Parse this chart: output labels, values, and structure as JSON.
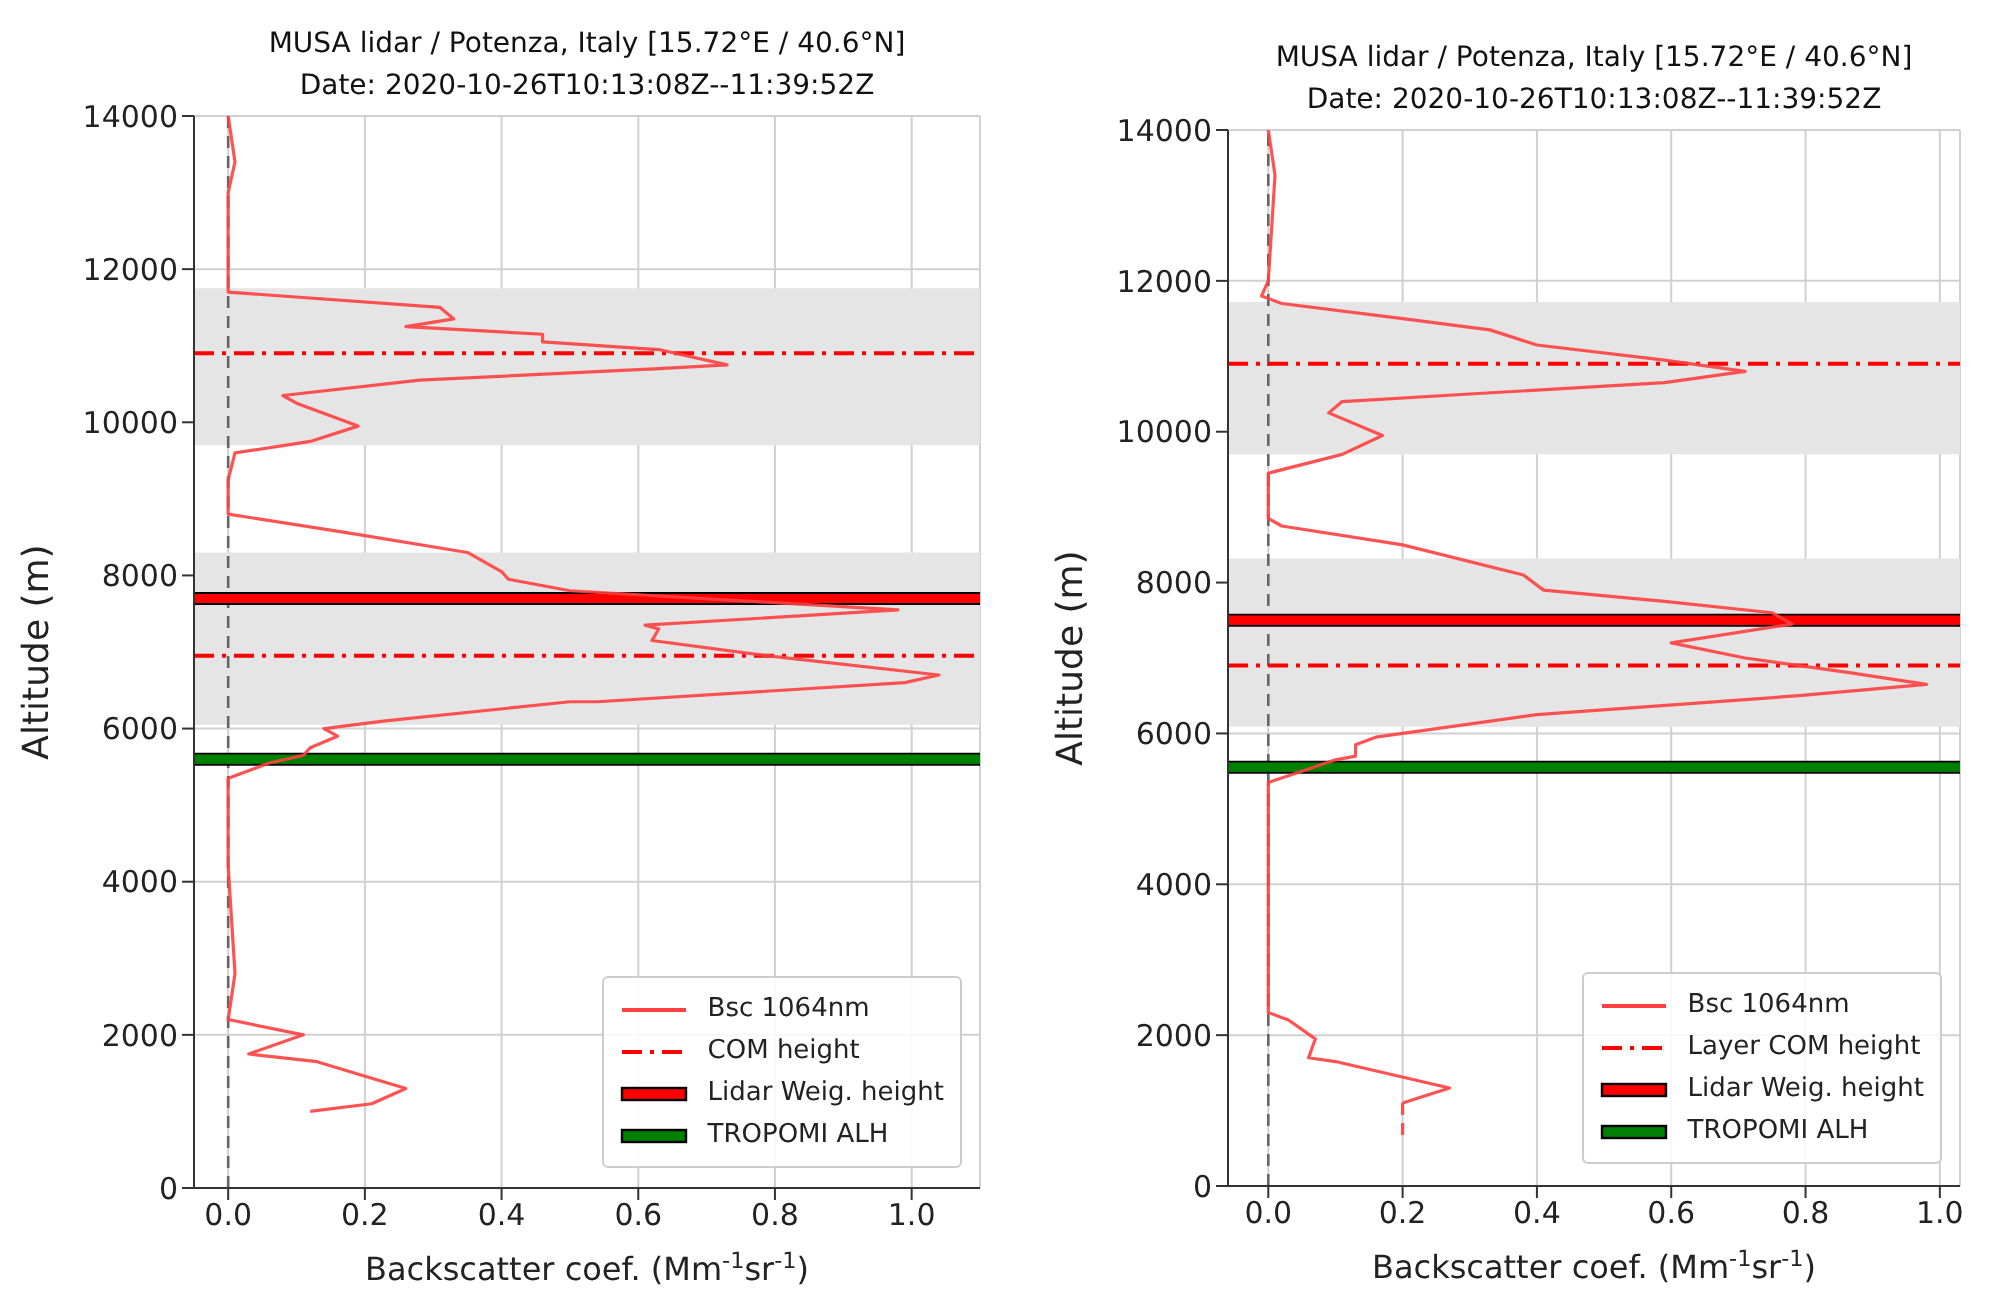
{
  "chart_data": [
    {
      "type": "line",
      "title": "MUSA lidar / Potenza, Italy [15.72°E / 40.6°N]",
      "subtitle": "Date: 2020-10-26T10:13:08Z--11:39:52Z",
      "xlabel": "Backscatter coef. (Mm$^{-1}$sr$^{-1}$)",
      "ylabel": "Altitude (m)",
      "xlim": [
        -0.05,
        1.1
      ],
      "xticks": [
        {
          "value": 0,
          "label": "0.0"
        },
        {
          "value": 0.2,
          "label": "0.2"
        },
        {
          "value": 0.4,
          "label": "0.4"
        },
        {
          "value": 0.6,
          "label": "0.6"
        },
        {
          "value": 0.8,
          "label": "0.8"
        },
        {
          "value": 1,
          "label": "1.0"
        }
      ],
      "ylim": [
        0,
        14000
      ],
      "yticks": [
        0,
        2000,
        4000,
        6000,
        8000,
        10000,
        12000,
        14000
      ],
      "grid": true,
      "legend": "bottom right",
      "series": [
        {
          "name": "Bsc 1064nm",
          "color": "#ff4040",
          "x": [
            0,
            0.01,
            0,
            0,
            0,
            0.31,
            0.33,
            0.26,
            0.46,
            0.46,
            0.63,
            0.73,
            0.63,
            0.28,
            0.08,
            0.1,
            0.19,
            0.12,
            0.01,
            0,
            0,
            0.18,
            0.35,
            0.4,
            0.41,
            0.5,
            0.98,
            0.61,
            0.63,
            0.62,
            0.79,
            1.04,
            0.99,
            0.54,
            0.5,
            0.23,
            0.14,
            0.16,
            0.12,
            0.11,
            0.06,
            0,
            0,
            0.01,
            0,
            0.11,
            0.03,
            0.13,
            0.26,
            0.21,
            0.12
          ],
          "values": [
            14000,
            13400,
            13000,
            12000,
            11700,
            11500,
            11350,
            11250,
            11150,
            11050,
            10950,
            10750,
            10700,
            10550,
            10350,
            10250,
            9950,
            9750,
            9600,
            9250,
            8800,
            8550,
            8300,
            8050,
            7950,
            7800,
            7550,
            7350,
            7300,
            7150,
            6950,
            6700,
            6600,
            6350,
            6350,
            6100,
            6000,
            5900,
            5750,
            5650,
            5550,
            5350,
            4200,
            2800,
            2200,
            2000,
            1750,
            1650,
            1300,
            1100,
            1000
          ]
        }
      ],
      "bands": [
        {
          "axis": "y",
          "from": 9700,
          "to": 11750,
          "color": "#e5e5e5"
        },
        {
          "axis": "y",
          "from": 6050,
          "to": 8300,
          "color": "#e5e5e5"
        }
      ],
      "ref_lines": [
        {
          "axis": "x",
          "value": 0,
          "color": "#666666",
          "line_style": "dashed"
        },
        {
          "axis": "y",
          "value": 10900,
          "label": "COM height",
          "color": "#ff0000",
          "line_style": "dashdot"
        },
        {
          "axis": "y",
          "value": 6950,
          "color": "#ff0000",
          "line_style": "dashdot"
        },
        {
          "axis": "y",
          "value": 7700,
          "label": "Lidar Weig. height",
          "color": "#ff0000",
          "line_style": "solid"
        },
        {
          "axis": "y",
          "value": 5600,
          "label": "TROPOMI ALH",
          "color": "#008000",
          "line_style": "solid"
        }
      ]
    },
    {
      "type": "line",
      "title": "MUSA lidar / Potenza, Italy [15.72°E / 40.6°N]",
      "subtitle": "Date: 2020-10-26T10:13:08Z--11:39:52Z",
      "xlabel": "Backscatter coef. (Mm$^{-1}$sr$^{-1}$)",
      "ylabel": "Altitude (m)",
      "xlim": [
        -0.06,
        1.03
      ],
      "xticks": [
        {
          "value": 0,
          "label": "0.0"
        },
        {
          "value": 0.2,
          "label": "0.2"
        },
        {
          "value": 0.4,
          "label": "0.4"
        },
        {
          "value": 0.6,
          "label": "0.6"
        },
        {
          "value": 0.8,
          "label": "0.8"
        },
        {
          "value": 1,
          "label": "1.0"
        }
      ],
      "ylim": [
        0,
        14000
      ],
      "yticks": [
        0,
        2000,
        4000,
        6000,
        8000,
        10000,
        12000,
        14000
      ],
      "grid": true,
      "legend": "bottom right",
      "series": [
        {
          "name": "Bsc 1064nm",
          "color": "#ff4040",
          "x": [
            0,
            0.01,
            0,
            -0.01,
            0.02,
            0.2,
            0.33,
            0.4,
            0.59,
            0.71,
            0.59,
            0.3,
            0.11,
            0.09,
            0.17,
            0.11,
            0,
            0,
            0.02,
            0.2,
            0.38,
            0.41,
            0.59,
            0.75,
            0.78,
            0.6,
            0.71,
            0.87,
            0.98,
            0.79,
            0.4,
            0.16,
            0.13,
            0.13,
            0.1,
            0.05,
            0,
            0,
            0,
            0,
            0.03,
            0.07,
            0.06,
            0.1,
            0.27,
            0.2
          ],
          "values": [
            14000,
            13400,
            12000,
            11800,
            11700,
            11500,
            11350,
            11150,
            10950,
            10800,
            10650,
            10500,
            10400,
            10250,
            9950,
            9700,
            9450,
            8850,
            8750,
            8500,
            8100,
            7900,
            7750,
            7600,
            7450,
            7200,
            7000,
            6800,
            6650,
            6500,
            6250,
            5950,
            5850,
            5700,
            5650,
            5500,
            5350,
            4250,
            2750,
            2300,
            2200,
            1950,
            1700,
            1650,
            1300,
            1100
          ]
        },
        {
          "color": "#ff4040",
          "line_style": "dashed",
          "x": [
            0.2,
            0.2
          ],
          "values": [
            1100,
            600
          ]
        }
      ],
      "bands": [
        {
          "axis": "y",
          "from": 9700,
          "to": 11720,
          "color": "#e5e5e5"
        },
        {
          "axis": "y",
          "from": 6090,
          "to": 8320,
          "color": "#e5e5e5"
        }
      ],
      "ref_lines": [
        {
          "axis": "x",
          "value": 0,
          "color": "#666666",
          "line_style": "dashed"
        },
        {
          "axis": "y",
          "value": 10900,
          "label": "Layer COM height",
          "color": "#ff0000",
          "line_style": "dashdot"
        },
        {
          "axis": "y",
          "value": 6900,
          "color": "#ff0000",
          "line_style": "dashdot"
        },
        {
          "axis": "y",
          "value": 7500,
          "label": "Lidar Weig. height",
          "color": "#ff0000",
          "line_style": "solid"
        },
        {
          "axis": "y",
          "value": 5550,
          "label": "TROPOMI ALH",
          "color": "#008000",
          "line_style": "solid"
        }
      ]
    }
  ]
}
